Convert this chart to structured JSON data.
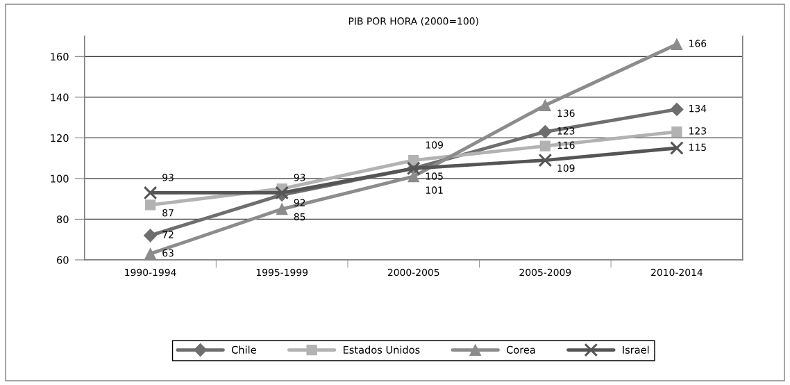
{
  "chart_data": {
    "type": "line",
    "title": "PIB POR HORA (2000=100)",
    "categories": [
      "1990-1994",
      "1995-1999",
      "2000-2005",
      "2005-2009",
      "2010-2014"
    ],
    "series": [
      {
        "name": "Chile",
        "color": "#6e6e6e",
        "marker": "diamond",
        "values": [
          72,
          92,
          105,
          123,
          134
        ],
        "value_labels": [
          "72",
          "92",
          "105",
          "123",
          "134"
        ]
      },
      {
        "name": "Estados Unidos",
        "color": "#b2b2b2",
        "marker": "square",
        "values": [
          87,
          95,
          109,
          116,
          123
        ],
        "value_labels": [
          "87",
          null,
          "109",
          "116",
          "123"
        ]
      },
      {
        "name": "Corea",
        "color": "#8c8c8c",
        "marker": "triangle",
        "values": [
          63,
          85,
          101,
          136,
          166
        ],
        "value_labels": [
          "63",
          "85",
          "101",
          "136",
          "166"
        ]
      },
      {
        "name": "Israel",
        "color": "#555555",
        "marker": "cross",
        "values": [
          93,
          93,
          105,
          109,
          115
        ],
        "value_labels": [
          "93",
          "93",
          null,
          "109",
          "115"
        ]
      }
    ],
    "ylim": [
      60,
      170
    ],
    "yticks": [
      60,
      80,
      100,
      120,
      140,
      160
    ],
    "grid": "y",
    "legend": "bottom",
    "line_style": "solid"
  }
}
